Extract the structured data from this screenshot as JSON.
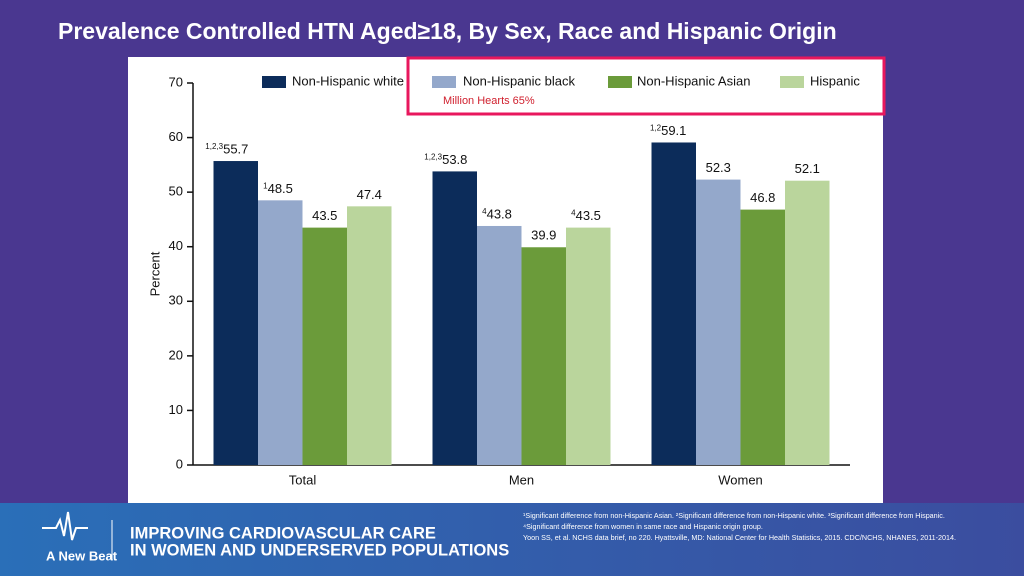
{
  "header": {
    "title": "Prevalence Controlled HTN Aged≥18, By Sex, Race and Hispanic Origin"
  },
  "chart_data": {
    "type": "bar",
    "y_label": "Percent",
    "categories": [
      "Total",
      "Men",
      "Women"
    ],
    "series": [
      {
        "name": "Non-Hispanic white",
        "color": "#0c2c5a",
        "values": [
          55.7,
          53.8,
          59.1
        ],
        "value_notes": [
          "1,2,3",
          "1,2,3",
          "1,2"
        ]
      },
      {
        "name": "Non-Hispanic black",
        "color": "#94a8cb",
        "values": [
          48.5,
          43.8,
          52.3
        ],
        "value_notes": [
          "1",
          "4",
          null
        ]
      },
      {
        "name": "Non-Hispanic Asian",
        "color": "#6b9b3a",
        "values": [
          43.5,
          39.9,
          46.8
        ]
      },
      {
        "name": "Hispanic",
        "color": "#bad59c",
        "values": [
          47.4,
          43.5,
          52.1
        ],
        "value_notes": [
          null,
          "4",
          null
        ]
      }
    ],
    "ylim": [
      0,
      70
    ],
    "yticks": [
      0,
      10,
      20,
      30,
      40,
      50,
      60,
      70
    ],
    "annotation": "Million Hearts 65%"
  },
  "footer": {
    "line1": "IMPROVING CARDIOVASCULAR CARE",
    "line2": "IN WOMEN AND UNDERSERVED POPULATIONS",
    "brand": "A New Beat",
    "notes": [
      "¹Significant difference from non-Hispanic Asian. ²Significant difference from non-Hispanic white. ³Significant difference from Hispanic.",
      "⁴Significant difference from women in same race and Hispanic origin group.",
      "Yoon SS, et al. NCHS data brief, no 220. Hyattsville, MD: National Center for  Health Statistics, 2015. CDC/NCHS, NHANES, 2011-2014."
    ]
  }
}
